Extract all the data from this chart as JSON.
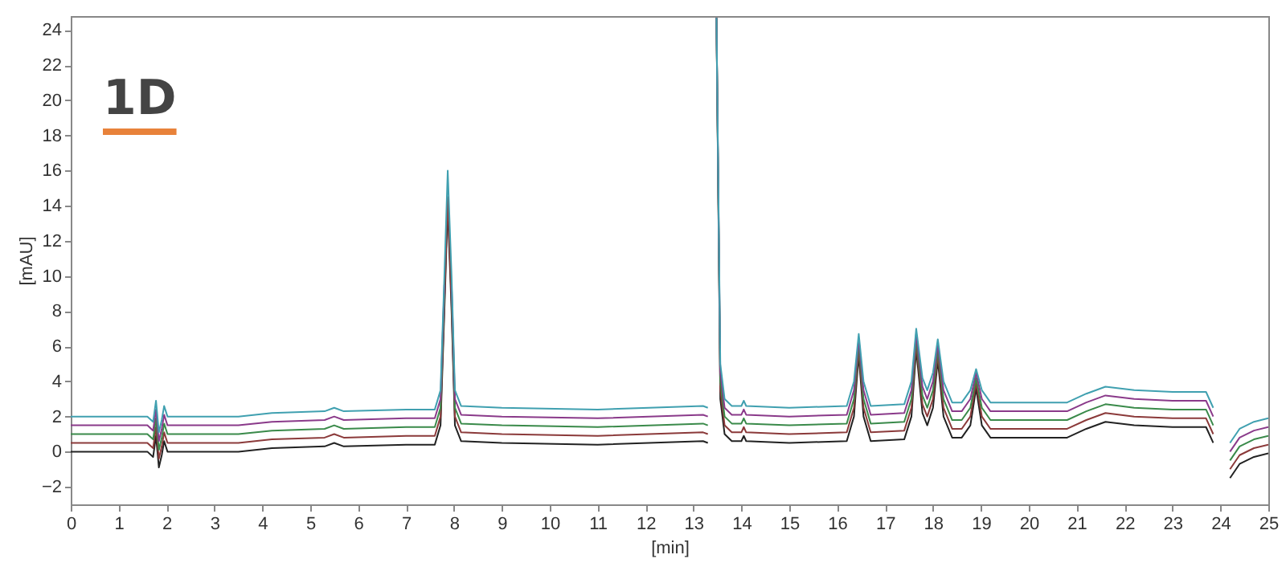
{
  "chart_data": {
    "type": "line",
    "xlabel": "[min]",
    "ylabel": "[mAU]",
    "annotations": [
      "1D"
    ],
    "x": [
      0,
      1.0,
      1.6,
      1.72,
      1.78,
      1.84,
      1.9,
      1.95,
      2.02,
      2.5,
      3.5,
      4.2,
      5.3,
      5.5,
      5.7,
      7.0,
      7.6,
      7.72,
      7.8,
      7.87,
      7.95,
      8.02,
      8.15,
      9,
      11,
      13.2,
      13.3,
      13.38,
      13.48,
      13.56,
      13.65,
      13.8,
      14.0,
      14.05,
      14.1,
      15,
      16.2,
      16.35,
      16.45,
      16.55,
      16.7,
      17.4,
      17.55,
      17.65,
      17.78,
      17.88,
      18.0,
      18.1,
      18.22,
      18.4,
      18.6,
      18.78,
      18.9,
      19.02,
      19.2,
      20.8,
      21.2,
      21.6,
      22.2,
      23.0,
      23.7,
      23.85,
      23.95,
      24.1,
      24.2,
      24.4,
      24.7,
      25
    ],
    "series": [
      {
        "color": "#222222",
        "values": [
          0,
          0,
          0,
          -0.3,
          0.9,
          -0.9,
          -0.2,
          0.6,
          0,
          0,
          0,
          0.2,
          0.3,
          0.5,
          0.3,
          0.4,
          0.4,
          1.5,
          8,
          14,
          8,
          1.5,
          0.6,
          0.5,
          0.4,
          0.6,
          0.5,
          null,
          24.7,
          3,
          1,
          0.6,
          0.6,
          0.9,
          0.6,
          0.5,
          0.6,
          2,
          5.5,
          2,
          0.6,
          0.7,
          2,
          5.8,
          2.2,
          1.5,
          2.5,
          5.2,
          2,
          0.8,
          0.8,
          1.5,
          3.6,
          1.5,
          0.8,
          0.8,
          1.3,
          1.7,
          1.5,
          1.4,
          1.4,
          0.5,
          null,
          null,
          -1.5,
          -0.7,
          -0.3,
          -0.1
        ]
      },
      {
        "color": "#8b3a3a",
        "values": [
          0.5,
          0.5,
          0.5,
          0.2,
          1.4,
          -0.4,
          0.3,
          1.1,
          0.5,
          0.5,
          0.5,
          0.7,
          0.8,
          1,
          0.8,
          0.9,
          0.9,
          2,
          8.5,
          14.5,
          8.5,
          2,
          1.1,
          1,
          0.9,
          1.1,
          1,
          null,
          24.7,
          3.5,
          1.5,
          1.1,
          1.1,
          1.4,
          1.1,
          1,
          1.1,
          2.5,
          5.8,
          2.5,
          1.1,
          1.2,
          2.5,
          6.1,
          2.7,
          2,
          3,
          5.5,
          2.5,
          1.3,
          1.3,
          2,
          3.9,
          2,
          1.3,
          1.3,
          1.8,
          2.2,
          2,
          1.9,
          1.9,
          1,
          null,
          null,
          -1,
          -0.2,
          0.2,
          0.4
        ]
      },
      {
        "color": "#3a8a4a",
        "values": [
          1,
          1,
          1,
          0.7,
          1.9,
          0.1,
          0.8,
          1.6,
          1,
          1,
          1,
          1.2,
          1.3,
          1.5,
          1.3,
          1.4,
          1.4,
          2.5,
          9,
          null,
          9,
          2.5,
          1.6,
          1.5,
          1.4,
          1.6,
          1.5,
          null,
          24.7,
          4,
          2,
          1.6,
          1.6,
          1.9,
          1.6,
          1.5,
          1.6,
          3,
          6.1,
          3,
          1.6,
          1.7,
          3,
          6.4,
          3.2,
          2.5,
          3.5,
          5.8,
          3,
          1.8,
          1.8,
          2.5,
          4.2,
          2.5,
          1.8,
          1.8,
          2.3,
          2.7,
          2.5,
          2.4,
          2.4,
          1.5,
          null,
          null,
          -0.5,
          0.3,
          0.7,
          0.9
        ]
      },
      {
        "color": "#8a3a8a",
        "values": [
          1.5,
          1.5,
          1.5,
          1.2,
          2.4,
          0.6,
          1.3,
          2.1,
          1.5,
          1.5,
          1.5,
          1.7,
          1.8,
          2,
          1.8,
          1.9,
          1.9,
          3,
          9.5,
          null,
          9.5,
          3,
          2.1,
          2,
          1.9,
          2.1,
          2,
          null,
          24.7,
          4.5,
          2.5,
          2.1,
          2.1,
          2.4,
          2.1,
          2,
          2.1,
          3.5,
          6.4,
          3.5,
          2.1,
          2.2,
          3.5,
          6.7,
          3.7,
          3,
          4,
          6.1,
          3.5,
          2.3,
          2.3,
          3,
          4.5,
          3,
          2.3,
          2.3,
          2.8,
          3.2,
          3,
          2.9,
          2.9,
          2,
          null,
          null,
          0,
          0.8,
          1.2,
          1.4
        ]
      },
      {
        "color": "#40a0b0",
        "values": [
          2,
          2,
          2,
          1.7,
          2.9,
          1.1,
          1.8,
          2.6,
          2,
          2,
          2,
          2.2,
          2.3,
          2.5,
          2.3,
          2.4,
          2.4,
          3.5,
          10,
          16,
          10,
          3.5,
          2.6,
          2.5,
          2.4,
          2.6,
          2.5,
          null,
          24.7,
          5,
          3,
          2.6,
          2.6,
          2.9,
          2.6,
          2.5,
          2.6,
          4,
          6.7,
          4,
          2.6,
          2.7,
          4,
          7,
          4.2,
          3.5,
          4.5,
          6.4,
          4,
          2.8,
          2.8,
          3.5,
          4.7,
          3.5,
          2.8,
          2.8,
          3.3,
          3.7,
          3.5,
          3.4,
          3.4,
          2.5,
          null,
          null,
          0.5,
          1.3,
          1.7,
          1.9
        ]
      }
    ],
    "xlim": [
      0,
      25
    ],
    "xticks": [
      0,
      1,
      2,
      3,
      4,
      5,
      6,
      7,
      8,
      9,
      10,
      11,
      12,
      13,
      14,
      15,
      16,
      17,
      18,
      19,
      20,
      21,
      22,
      23,
      24,
      25
    ],
    "ylim": [
      -3,
      24.8
    ],
    "yticks": [
      -2,
      0,
      2,
      4,
      6,
      8,
      10,
      12,
      14,
      16,
      18,
      20,
      22,
      24
    ],
    "grid": false
  }
}
